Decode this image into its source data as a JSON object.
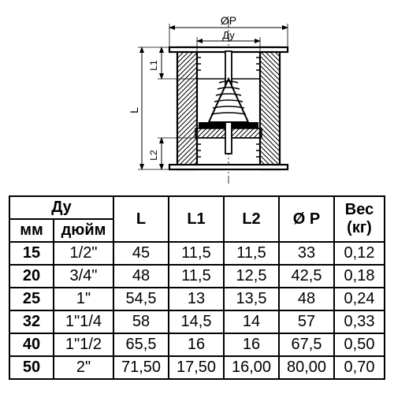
{
  "diagram": {
    "labels": {
      "phi_p": "ØР",
      "du": "Ду",
      "L": "L",
      "L1": "L1",
      "L2": "L2"
    },
    "colors": {
      "stroke": "#000000",
      "hatch": "#000000",
      "fill_light": "#ffffff",
      "fill_gray": "#c4c4c4"
    },
    "line_width_thin": 1,
    "line_width_thick": 2.5
  },
  "table": {
    "header_du": "Ду",
    "header_mm": "мм",
    "header_inch": "дюйм",
    "header_L": "L",
    "header_L1": "L1",
    "header_L2": "L2",
    "header_P": "Ø Р",
    "header_weight": "Вес (кг)",
    "rows": [
      {
        "mm": "15",
        "inch": "1/2\"",
        "L": "45",
        "L1": "11,5",
        "L2": "11,5",
        "P": "33",
        "W": "0,12"
      },
      {
        "mm": "20",
        "inch": "3/4\"",
        "L": "48",
        "L1": "11,5",
        "L2": "12,5",
        "P": "42,5",
        "W": "0,18"
      },
      {
        "mm": "25",
        "inch": "1\"",
        "L": "54,5",
        "L1": "13",
        "L2": "13,5",
        "P": "48",
        "W": "0,24"
      },
      {
        "mm": "32",
        "inch": "1\"1/4",
        "L": "58",
        "L1": "14,5",
        "L2": "14",
        "P": "57",
        "W": "0,33"
      },
      {
        "mm": "40",
        "inch": "1\"1/2",
        "L": "65,5",
        "L1": "16",
        "L2": "16",
        "P": "67,5",
        "W": "0,50"
      },
      {
        "mm": "50",
        "inch": "2\"",
        "L": "71,50",
        "L1": "17,50",
        "L2": "16,00",
        "P": "80,00",
        "W": "0,70"
      }
    ]
  }
}
